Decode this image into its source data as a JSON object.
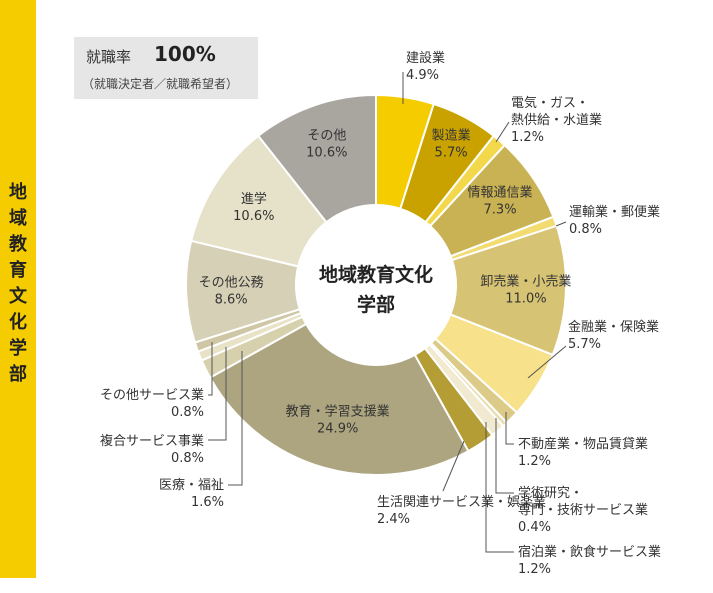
{
  "department": "地域教育文化学部",
  "employment_rate": {
    "label": "就職率",
    "value": "100%",
    "note": "（就職決定者／就職希望者）"
  },
  "center_label": [
    "地域教育文化",
    "学部"
  ],
  "colors": {
    "accent": "#f5cc00",
    "box": "#e6e6e6",
    "leader": "#555555"
  },
  "chart_data": {
    "type": "pie",
    "variant": "donut",
    "title": "地域教育文化学部",
    "unit": "%",
    "slices": [
      {
        "name": "建設業",
        "value": 4.9,
        "label_lines": [
          "建設業",
          "4.9%"
        ],
        "color": "#f5cc00"
      },
      {
        "name": "製造業",
        "value": 5.7,
        "label_lines": [
          "製造業",
          "5.7%"
        ],
        "color": "#c9a200"
      },
      {
        "name": "電気・ガス・熱供給・水道業",
        "value": 1.2,
        "label_lines": [
          "電気・ガス・",
          "熱供給・水道業",
          "1.2%"
        ],
        "color": "#f2d84a"
      },
      {
        "name": "情報通信業",
        "value": 7.3,
        "label_lines": [
          "情報通信業",
          "7.3%"
        ],
        "color": "#c9b254"
      },
      {
        "name": "運輸業・郵便業",
        "value": 0.8,
        "label_lines": [
          "運輸業・郵便業",
          "0.8%"
        ],
        "color": "#f2dc70"
      },
      {
        "name": "卸売業・小売業",
        "value": 11.0,
        "label_lines": [
          "卸売業・小売業",
          "11.0%"
        ],
        "color": "#d6c374"
      },
      {
        "name": "金融業・保険業",
        "value": 5.7,
        "label_lines": [
          "金融業・保険業",
          "5.7%"
        ],
        "color": "#f7e18a"
      },
      {
        "name": "不動産業・物品賃貸業",
        "value": 1.2,
        "label_lines": [
          "不動産業・物品賃貸業",
          "1.2%"
        ],
        "color": "#dccb88"
      },
      {
        "name": "学術研究・専門・技術サービス業",
        "value": 0.4,
        "label_lines": [
          "学術研究・",
          "専門・技術サービス業",
          "0.4%"
        ],
        "color": "#e8ddb0"
      },
      {
        "name": "宿泊業・飲食サービス業",
        "value": 1.2,
        "label_lines": [
          "宿泊業・飲食サービス業",
          "1.2%"
        ],
        "color": "#f1ead0"
      },
      {
        "name": "生活関連サービス業・娯楽業",
        "value": 2.4,
        "label_lines": [
          "生活関連サービス業・娯楽業",
          "2.4%"
        ],
        "color": "#b59d36"
      },
      {
        "name": "教育・学習支援業",
        "value": 24.9,
        "label_lines": [
          "教育・学習支援業",
          "24.9%"
        ],
        "color": "#ada580"
      },
      {
        "name": "医療・福祉",
        "value": 1.6,
        "label_lines": [
          "医療・福祉",
          "1.6%"
        ],
        "color": "#d7d0ad"
      },
      {
        "name": "複合サービス事業",
        "value": 0.8,
        "label_lines": [
          "複合サービス事業",
          "0.8%"
        ],
        "color": "#e8e3c6"
      },
      {
        "name": "その他サービス業",
        "value": 0.8,
        "label_lines": [
          "その他サービス業",
          "0.8%"
        ],
        "color": "#cec6a4"
      },
      {
        "name": "その他公務",
        "value": 8.6,
        "label_lines": [
          "その他公務",
          "8.6%"
        ],
        "color": "#d6d0b6"
      },
      {
        "name": "進学",
        "value": 10.6,
        "label_lines": [
          "進学",
          "10.6%"
        ],
        "color": "#e6e2ca"
      },
      {
        "name": "その他",
        "value": 10.6,
        "label_lines": [
          "その他",
          "10.6%"
        ],
        "color": "#a9a6a0"
      }
    ]
  }
}
